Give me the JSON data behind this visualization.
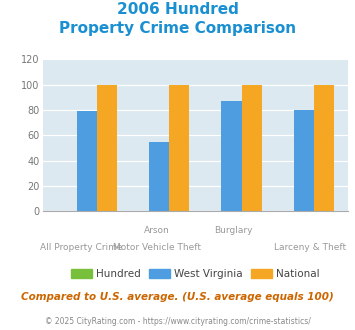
{
  "title_line1": "2006 Hundred",
  "title_line2": "Property Crime Comparison",
  "hundred_values": [
    0,
    0,
    0,
    0
  ],
  "wv_values": [
    79,
    55,
    87,
    80
  ],
  "national_values": [
    100,
    100,
    100,
    100
  ],
  "hundred_color": "#78c03b",
  "wv_color": "#4d9de0",
  "national_color": "#f5a623",
  "bg_color": "#dce9f0",
  "ylim": [
    0,
    120
  ],
  "yticks": [
    0,
    20,
    40,
    60,
    80,
    100,
    120
  ],
  "title_color": "#1a8fd1",
  "xlabel_color": "#999999",
  "legend_labels": [
    "Hundred",
    "West Virginia",
    "National"
  ],
  "footer_text": "Compared to U.S. average. (U.S. average equals 100)",
  "footer_color": "#cc6600",
  "copyright_text": "© 2025 CityRating.com - https://www.cityrating.com/crime-statistics/",
  "copyright_color": "#888888",
  "row1_labels": [
    "",
    "Arson",
    "Burglary",
    ""
  ],
  "row2_labels": [
    "All Property Crime",
    "Motor Vehicle Theft",
    "",
    "Larceny & Theft"
  ]
}
